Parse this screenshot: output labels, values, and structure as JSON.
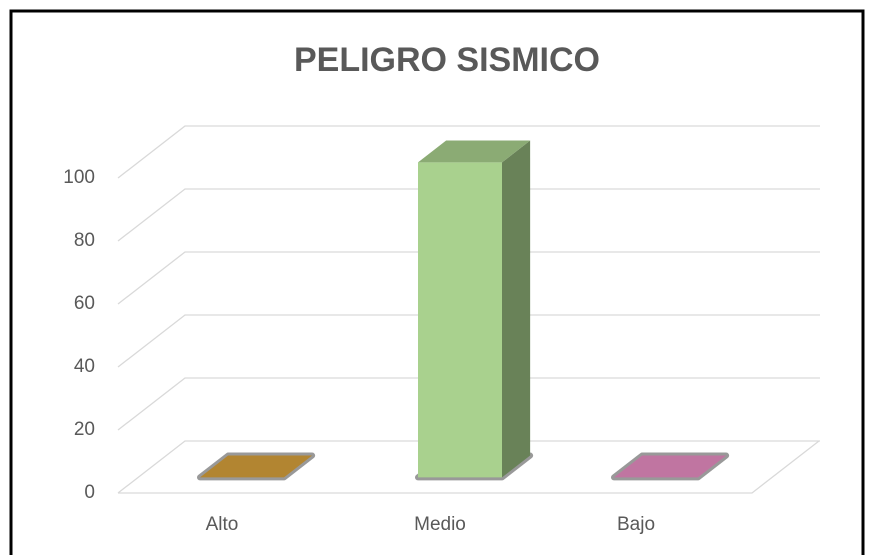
{
  "chart_data": {
    "type": "bar",
    "title": "PELIGRO SISMICO",
    "categories": [
      "Alto",
      "Medio",
      "Bajo"
    ],
    "values": [
      0,
      100,
      0
    ],
    "colors": [
      "#d9a23c",
      "#a9d18e",
      "#ea8fc4"
    ],
    "ylim": [
      0,
      100
    ],
    "yticks": [
      0,
      20,
      40,
      60,
      80,
      100
    ],
    "grid": true
  }
}
